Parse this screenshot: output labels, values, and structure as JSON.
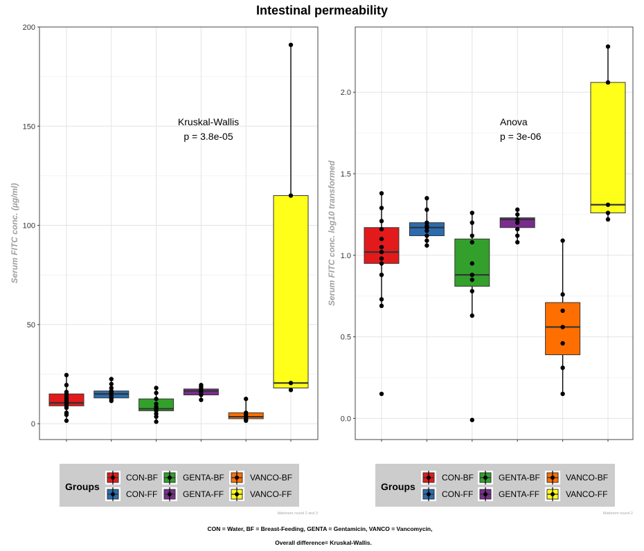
{
  "title": "Intestinal permeability",
  "chart_data": [
    {
      "type": "box",
      "ylabel": "Serum FITC conc. (µg/ml)",
      "ylim": [
        -8,
        200
      ],
      "yticks": [
        0,
        50,
        100,
        150,
        200
      ],
      "categories": [
        "CON-BF",
        "CON-FF",
        "GENTA-BF",
        "GENTA-FF",
        "VANCO-BF",
        "VANCO-FF"
      ],
      "annotation": [
        "Kruskal-Wallis",
        "p = 3.8e-05"
      ],
      "caption": "Matrinem round 2 and 3",
      "boxes": [
        {
          "group": "CON-BF",
          "q1": 9,
          "median": 10.5,
          "q3": 15,
          "lower": 1.5,
          "upper": 24.5,
          "points": [
            1.5,
            4.5,
            5.5,
            8,
            9,
            10,
            10.5,
            11,
            12,
            13,
            14,
            15,
            16,
            19.5,
            24.5
          ]
        },
        {
          "group": "CON-FF",
          "q1": 13,
          "median": 15,
          "q3": 16.5,
          "lower": 11.5,
          "upper": 22.5,
          "points": [
            11.5,
            12.5,
            13,
            14,
            15,
            15.5,
            16,
            16.5,
            18,
            20,
            22.5
          ]
        },
        {
          "group": "GENTA-BF",
          "q1": 6.5,
          "median": 7.5,
          "q3": 12.5,
          "lower": 1,
          "upper": 18,
          "points": [
            1,
            3.5,
            5,
            6.5,
            7.5,
            8.5,
            10,
            12.5,
            15.5,
            18
          ]
        },
        {
          "group": "GENTA-FF",
          "q1": 14.5,
          "median": 16.5,
          "q3": 17.5,
          "lower": 12,
          "upper": 19.5,
          "points": [
            12,
            14.5,
            15.5,
            16.5,
            17,
            17.5,
            18.5,
            19.5
          ]
        },
        {
          "group": "VANCO-BF",
          "q1": 2.5,
          "median": 3.5,
          "q3": 5.5,
          "lower": 1.5,
          "upper": 12.5,
          "points": [
            1.5,
            2,
            2.5,
            3.5,
            4.5,
            5.5,
            12.5
          ]
        },
        {
          "group": "VANCO-FF",
          "q1": 18,
          "median": 20.5,
          "q3": 115,
          "lower": 17,
          "upper": 191,
          "points": [
            17,
            20.5,
            115,
            191
          ]
        }
      ]
    },
    {
      "type": "box",
      "ylabel": "Serum FITC conc. log10 transformed",
      "ylim": [
        -0.13,
        2.4
      ],
      "yticks": [
        0.0,
        0.5,
        1.0,
        1.5,
        2.0
      ],
      "categories": [
        "CON-BF",
        "CON-FF",
        "GENTA-BF",
        "GENTA-FF",
        "VANCO-BF",
        "VANCO-FF"
      ],
      "annotation": [
        "Anova",
        "p = 3e-06"
      ],
      "caption": "Matrinem round 2",
      "boxes": [
        {
          "group": "CON-BF",
          "q1": 0.95,
          "median": 1.02,
          "q3": 1.17,
          "lower": 0.69,
          "upper": 1.38,
          "points": [
            0.15,
            0.69,
            0.73,
            0.88,
            0.95,
            0.98,
            1.02,
            1.05,
            1.1,
            1.16,
            1.21,
            1.29,
            1.38
          ]
        },
        {
          "group": "CON-FF",
          "q1": 1.12,
          "median": 1.17,
          "q3": 1.2,
          "lower": 1.06,
          "upper": 1.35,
          "points": [
            1.06,
            1.09,
            1.12,
            1.15,
            1.17,
            1.18,
            1.2,
            1.28,
            1.35
          ]
        },
        {
          "group": "GENTA-BF",
          "q1": 0.81,
          "median": 0.88,
          "q3": 1.1,
          "lower": 0.63,
          "upper": 1.26,
          "points": [
            -0.01,
            0.63,
            0.78,
            0.85,
            0.88,
            0.95,
            1.08,
            1.12,
            1.2,
            1.26
          ]
        },
        {
          "group": "GENTA-FF",
          "q1": 1.17,
          "median": 1.22,
          "q3": 1.23,
          "lower": 1.08,
          "upper": 1.28,
          "points": [
            1.08,
            1.12,
            1.16,
            1.2,
            1.22,
            1.25,
            1.28
          ]
        },
        {
          "group": "VANCO-BF",
          "q1": 0.39,
          "median": 0.56,
          "q3": 0.71,
          "lower": 0.15,
          "upper": 1.09,
          "points": [
            0.15,
            0.31,
            0.46,
            0.56,
            0.66,
            0.76,
            1.09
          ]
        },
        {
          "group": "VANCO-FF",
          "q1": 1.26,
          "median": 1.31,
          "q3": 2.06,
          "lower": 1.22,
          "upper": 2.28,
          "points": [
            1.22,
            1.26,
            1.31,
            2.06,
            2.28
          ]
        }
      ]
    }
  ],
  "legend": {
    "title": "Groups",
    "items": [
      {
        "label": "CON-BF",
        "color": "#e31a1c"
      },
      {
        "label": "CON-FF",
        "color": "#2b6cb0"
      },
      {
        "label": "GENTA-BF",
        "color": "#33a02c"
      },
      {
        "label": "GENTA-FF",
        "color": "#7b2d8e"
      },
      {
        "label": "VANCO-BF",
        "color": "#ff6f00"
      },
      {
        "label": "VANCO-FF",
        "color": "#ffff1a"
      }
    ]
  },
  "footnote": {
    "line1": "CON = Water, BF = Breast-Feeding, GENTA = Gentamicin,  VANCO = Vancomycin,",
    "line2": "Overall difference= Kruskal-Wallis."
  }
}
